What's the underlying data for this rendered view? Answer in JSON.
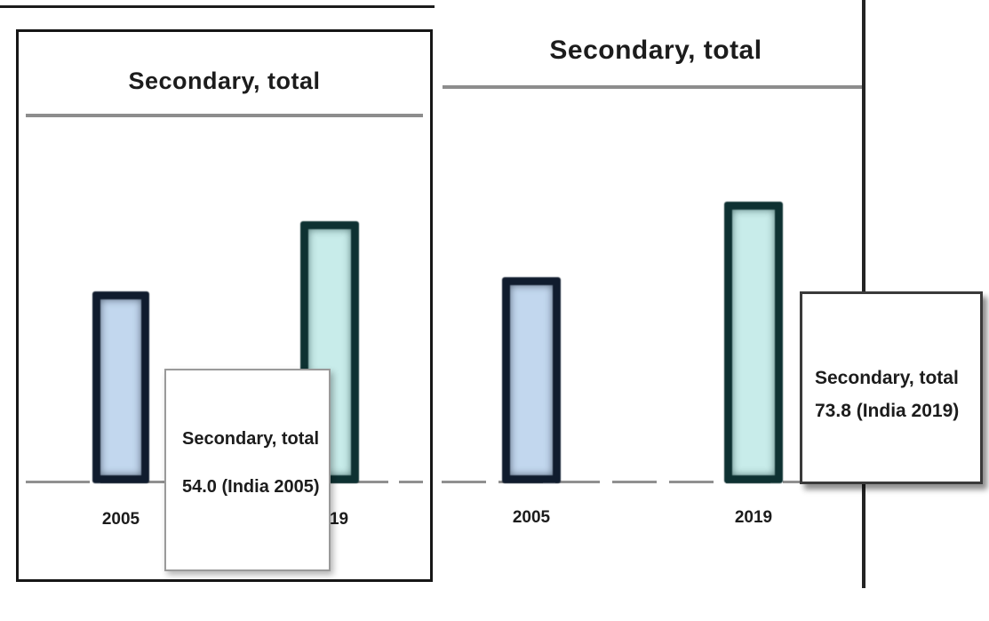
{
  "chart_data": [
    {
      "type": "bar",
      "title": "Secondary, total",
      "categories": [
        "2005",
        "2019"
      ],
      "values": [
        54.0,
        73.8
      ],
      "xlabel": "",
      "ylabel": "",
      "ylim": [
        0,
        100
      ],
      "grid": false,
      "legend": false,
      "tooltip": {
        "line1": "Secondary, total",
        "line2": "54.0 (India 2005)"
      },
      "colors": {
        "bar_2005_fill": "#c2d7ee",
        "bar_2005_border": "#101c2e",
        "bar_2019_fill": "#c8ecea",
        "bar_2019_border": "#0e3132",
        "axis": "#909090",
        "title": "#1c1c1c"
      }
    },
    {
      "type": "bar",
      "title": "Secondary, total",
      "categories": [
        "2005",
        "2019"
      ],
      "values": [
        54.0,
        73.8
      ],
      "xlabel": "",
      "ylabel": "",
      "ylim": [
        0,
        100
      ],
      "grid": false,
      "legend": false,
      "tooltip": {
        "line1": "Secondary, total",
        "line2": "73.8 (India 2019)"
      }
    }
  ]
}
